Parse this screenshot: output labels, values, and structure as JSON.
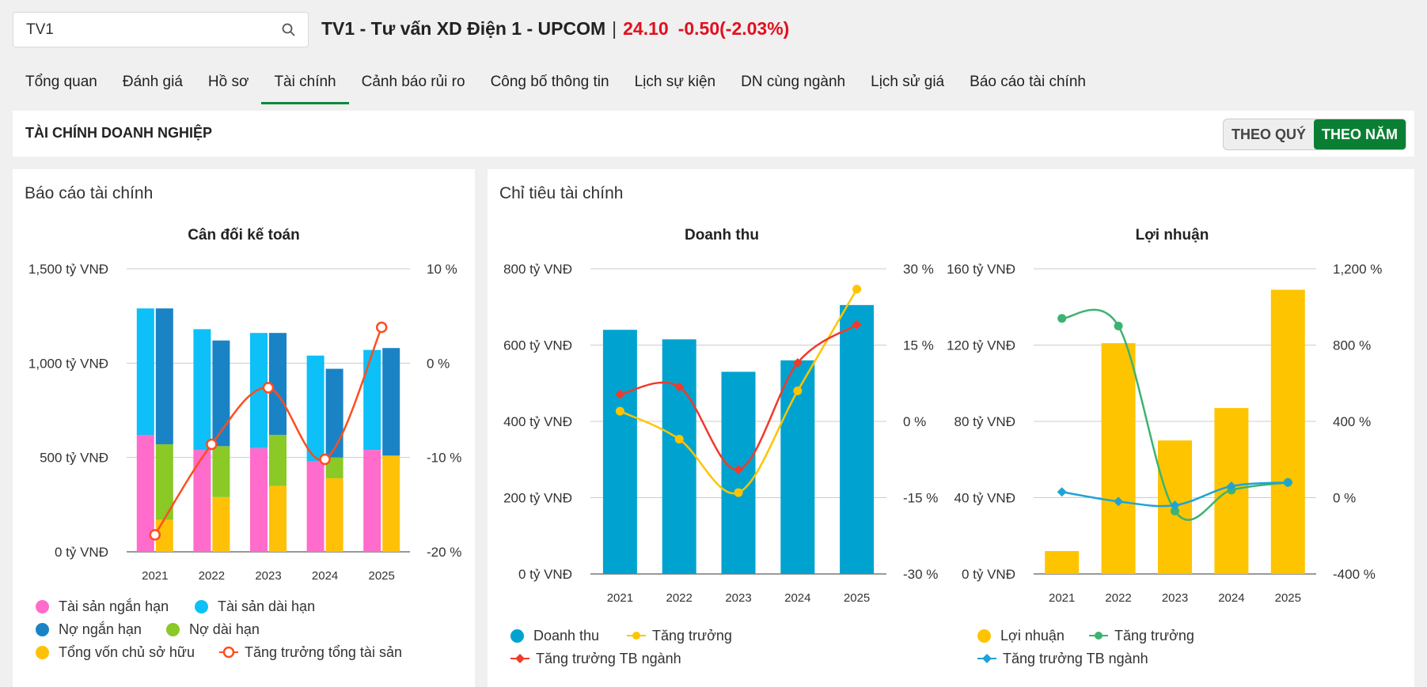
{
  "search": {
    "value": "TV1"
  },
  "ticker": {
    "name": "TV1 - Tư vấn XD Điện 1 - UPCOM",
    "sep": "|",
    "price": "24.10",
    "change": "-0.50(-2.03%)"
  },
  "tabs": [
    "Tổng quan",
    "Đánh giá",
    "Hồ sơ",
    "Tài chính",
    "Cảnh báo rủi ro",
    "Công bố thông tin",
    "Lịch sự kiện",
    "DN cùng ngành",
    "Lịch sử giá",
    "Báo cáo tài chính"
  ],
  "active_tab": "Tài chính",
  "header": {
    "title": "TÀI CHÍNH DOANH NGHIỆP",
    "toggle_quarter": "THEO QUÝ",
    "toggle_year": "THEO NĂM",
    "toggle_selected": "THEO NĂM"
  },
  "panels": {
    "left_title": "Báo cáo tài chính",
    "right_title": "Chỉ tiêu tài chính"
  },
  "colors": {
    "pink": "#ff6ccb",
    "cyan": "#0dc0f7",
    "darkblue": "#1a83c6",
    "green": "#8ac926",
    "yellow": "#ffc107",
    "orange_red": "#ff4d1f",
    "revenue_bar": "#00a3cf",
    "amber": "#ffc400",
    "red": "#f03a2b",
    "green_line": "#3cb371",
    "teal_line": "#1fa3d6",
    "accent_green": "#0a7f34",
    "price_red": "#e0101f"
  },
  "chart_data": [
    {
      "type": "bar",
      "title": "Cân đối kế toán",
      "categories": [
        "2021",
        "2022",
        "2023",
        "2024",
        "2025"
      ],
      "y_left": {
        "ticks": [
          "1,500 tỷ VNĐ",
          "1,000 tỷ VNĐ",
          "500 tỷ VNĐ",
          "0 tỷ VNĐ"
        ],
        "range": [
          0,
          1500
        ]
      },
      "y_right": {
        "ticks": [
          "10 %",
          "0 %",
          "-10 %",
          "-20 %"
        ],
        "range": [
          -20,
          10
        ]
      },
      "stack_assets": [
        {
          "name": "Tài sản ngắn hạn",
          "color": "#ff6ccb",
          "values": [
            620,
            540,
            550,
            480,
            540
          ]
        },
        {
          "name": "Tài sản dài hạn",
          "color": "#0dc0f7",
          "values": [
            670,
            640,
            610,
            560,
            530
          ]
        }
      ],
      "stack_capital": [
        {
          "name": "Nợ ngắn hạn",
          "color": "#1a83c6",
          "values": [
            720,
            560,
            540,
            470,
            570
          ]
        },
        {
          "name": "Nợ dài hạn",
          "color": "#8ac926",
          "values": [
            400,
            270,
            270,
            110,
            0
          ]
        },
        {
          "name": "Tổng vốn chủ sở hữu",
          "color": "#ffc107",
          "values": [
            170,
            290,
            350,
            390,
            510
          ]
        }
      ],
      "line": {
        "name": "Tăng trưởng tổng tài sản",
        "color": "#ff4d1f",
        "axis": "right",
        "values": [
          -18.2,
          -8.6,
          -2.6,
          -10.2,
          3.8
        ]
      }
    },
    {
      "type": "bar",
      "title": "Doanh thu",
      "categories": [
        "2021",
        "2022",
        "2023",
        "2024",
        "2025"
      ],
      "y_left": {
        "ticks": [
          "800 tỷ VNĐ",
          "600 tỷ VNĐ",
          "400 tỷ VNĐ",
          "200 tỷ VNĐ",
          "0 tỷ VNĐ"
        ],
        "range": [
          0,
          800
        ]
      },
      "y_right": {
        "ticks": [
          "30 %",
          "15 %",
          "0 %",
          "-15 %",
          "-30 %"
        ],
        "range": [
          -30,
          30
        ]
      },
      "bars": {
        "name": "Doanh thu",
        "color": "#00a3cf",
        "values": [
          640,
          615,
          530,
          560,
          705
        ]
      },
      "lines": [
        {
          "name": "Tăng trưởng",
          "color": "#ffc400",
          "axis": "right",
          "values": [
            2,
            -3.5,
            -14,
            6,
            26
          ]
        },
        {
          "name": "Tăng trưởng TB ngành",
          "color": "#f03a2b",
          "axis": "right",
          "values": [
            5.3,
            6.8,
            -9.5,
            11.5,
            19
          ]
        }
      ]
    },
    {
      "type": "bar",
      "title": "Lợi nhuận",
      "categories": [
        "2021",
        "2022",
        "2023",
        "2024",
        "2025"
      ],
      "y_left": {
        "ticks": [
          "160 tỷ VNĐ",
          "120 tỷ VNĐ",
          "80 tỷ VNĐ",
          "40 tỷ VNĐ",
          "0 tỷ VNĐ"
        ],
        "range": [
          0,
          160
        ]
      },
      "y_right": {
        "ticks": [
          "1,200 %",
          "800 %",
          "400 %",
          "0 %",
          "-400 %"
        ],
        "range": [
          -400,
          1200
        ]
      },
      "bars": {
        "name": "Lợi nhuận",
        "color": "#ffc400",
        "values": [
          12,
          121,
          70,
          87,
          149
        ]
      },
      "lines": [
        {
          "name": "Tăng trưởng",
          "color": "#3cb371",
          "axis": "right",
          "values": [
            940,
            900,
            -70,
            40,
            80
          ]
        },
        {
          "name": "Tăng trưởng TB ngành",
          "color": "#1fa3d6",
          "axis": "right",
          "values": [
            30,
            -20,
            -40,
            60,
            80
          ]
        }
      ]
    }
  ]
}
